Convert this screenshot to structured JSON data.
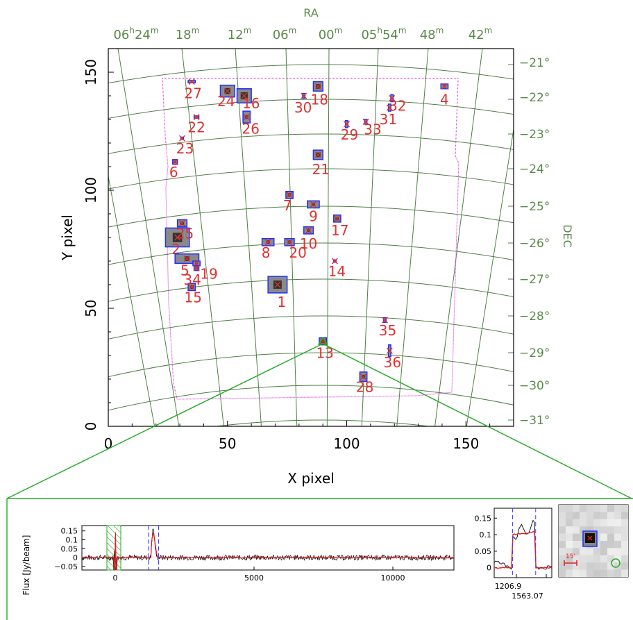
{
  "chart_data": [
    {
      "type": "scatter",
      "xlabel": "X pixel",
      "ylabel": "Y pixel",
      "top_axis_label": "RA",
      "right_axis_label": "DEC",
      "xlim": [
        0,
        170
      ],
      "ylim": [
        0,
        160
      ],
      "x_ticks": [
        "0",
        "50",
        "100",
        "150"
      ],
      "y_ticks": [
        "0",
        "50",
        "100",
        "150"
      ],
      "ra_ticks": [
        {
          "h": "06",
          "m": "24",
          "show_h": true
        },
        {
          "m": "18"
        },
        {
          "m": "12"
        },
        {
          "m": "06"
        },
        {
          "m": "00"
        },
        {
          "h": "05",
          "m": "54",
          "show_h": true
        },
        {
          "m": "48"
        },
        {
          "m": "42"
        }
      ],
      "dec_ticks": [
        "−21°",
        "−22°",
        "−23°",
        "−24°",
        "−25°",
        "−26°",
        "−27°",
        "−28°",
        "−29°",
        "−30°",
        "−31°"
      ],
      "colors": {
        "grid": "#4f7f45",
        "footprint": "#e040e0",
        "mask": "#2030ff",
        "label": "#e03030",
        "zoom": "#22aa22",
        "axis_text": "#5a8a4a"
      },
      "sources": [
        {
          "id": "1",
          "x": 71,
          "y": 60
        },
        {
          "id": "2",
          "x": 29,
          "y": 80
        },
        {
          "id": "4",
          "x": 141,
          "y": 144
        },
        {
          "id": "5",
          "x": 33,
          "y": 71
        },
        {
          "id": "6",
          "x": 28,
          "y": 112
        },
        {
          "id": "7",
          "x": 76,
          "y": 98
        },
        {
          "id": "8",
          "x": 67,
          "y": 78
        },
        {
          "id": "9",
          "x": 86,
          "y": 94
        },
        {
          "id": "10",
          "x": 84,
          "y": 83
        },
        {
          "id": "13",
          "x": 90,
          "y": 36
        },
        {
          "id": "14",
          "x": 95,
          "y": 70
        },
        {
          "id": "15",
          "x": 35,
          "y": 59
        },
        {
          "id": "17",
          "x": 96,
          "y": 88
        },
        {
          "id": "18",
          "x": 88,
          "y": 144
        },
        {
          "id": "19",
          "x": 37,
          "y": 69
        },
        {
          "id": "20",
          "x": 76,
          "y": 78
        },
        {
          "id": "21",
          "x": 88,
          "y": 115
        },
        {
          "id": "22",
          "x": 37,
          "y": 131
        },
        {
          "id": "23",
          "x": 31,
          "y": 122
        },
        {
          "id": "24",
          "x": 50,
          "y": 142
        },
        {
          "id": "25",
          "x": 31,
          "y": 86
        },
        {
          "id": "26",
          "x": 58,
          "y": 131
        },
        {
          "id": "27",
          "x": 35,
          "y": 146
        },
        {
          "id": "28",
          "x": 107,
          "y": 21
        },
        {
          "id": "29",
          "x": 100,
          "y": 128
        },
        {
          "id": "30",
          "x": 82,
          "y": 140
        },
        {
          "id": "31",
          "x": 118,
          "y": 135
        },
        {
          "id": "32",
          "x": 119,
          "y": 139
        },
        {
          "id": "33",
          "x": 108,
          "y": 129
        },
        {
          "id": "34",
          "x": 37,
          "y": 67
        },
        {
          "id": "35",
          "x": 116,
          "y": 45
        },
        {
          "id": "36",
          "x": 118,
          "y": 32
        },
        {
          "id": "16",
          "x": 57,
          "y": 140
        }
      ]
    },
    {
      "type": "line",
      "ylabel": "Flux [Jy/beam]",
      "xlim": [
        -1200,
        12200
      ],
      "ylim": [
        -0.07,
        0.18
      ],
      "x_ticks": [
        0,
        5000,
        10000
      ],
      "y_ticks": [
        -0.05,
        0,
        0.05,
        0.1,
        0.15
      ],
      "y_tick_labels": [
        "−0.05",
        "0",
        "0.05",
        "0.1",
        "0.15"
      ],
      "series": [
        {
          "color": "#000000",
          "role": "data"
        },
        {
          "color": "#e02020",
          "role": "model"
        }
      ],
      "peak_x": 1350,
      "peak_flux": 0.16,
      "window": [
        1206.9,
        1563.07
      ],
      "hatched_band": [
        -300,
        200
      ]
    },
    {
      "type": "line",
      "x_tick_labels": [
        "1206.9",
        "1563.07"
      ],
      "y_ticks": [
        0,
        0.05,
        0.1,
        0.15
      ],
      "y_tick_labels": [
        "0",
        "0.05",
        "0.1",
        "0.15"
      ],
      "ylim": [
        -0.03,
        0.18
      ]
    },
    {
      "type": "heatmap",
      "scale_label": "15'"
    }
  ]
}
